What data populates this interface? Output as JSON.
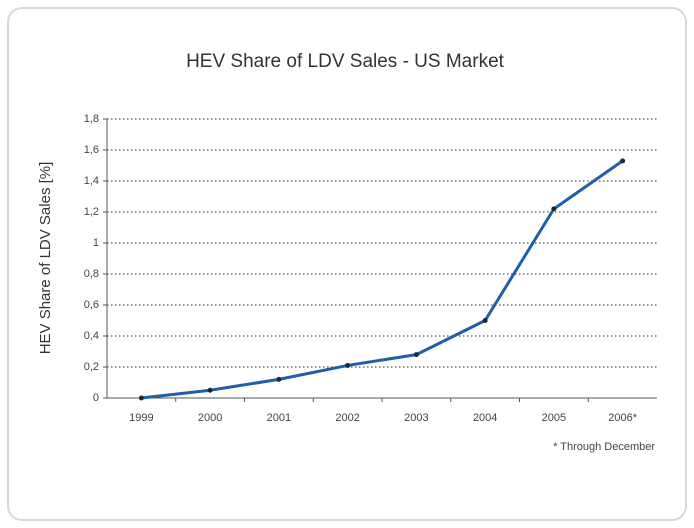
{
  "chart_data": {
    "type": "line",
    "title": "HEV Share of LDV Sales - US Market",
    "y_label": "HEV Share of LDV Sales [%]",
    "annotation": "* Through December",
    "categories": [
      "1999",
      "2000",
      "2001",
      "2002",
      "2003",
      "2004",
      "2005",
      "2006*"
    ],
    "values": [
      0,
      0.05,
      0.12,
      0.21,
      0.28,
      0.5,
      1.22,
      1.53
    ],
    "color": "#1f5fa8",
    "marker_color": "#1a2a3a",
    "ylim": [
      0,
      1.8
    ],
    "yticks": [
      0,
      {
        "value": 0.2,
        "label": "0,2"
      },
      {
        "value": 0.4,
        "label": "0,4"
      },
      {
        "value": 0.6,
        "label": "0,6"
      },
      {
        "value": 0.8,
        "label": "0,8"
      },
      1,
      {
        "value": 1.2,
        "label": "1,2"
      },
      {
        "value": 1.4,
        "label": "1,4"
      },
      {
        "value": 1.6,
        "label": "1,6"
      },
      {
        "value": 1.8,
        "label": "1,8"
      }
    ],
    "grid": true
  }
}
